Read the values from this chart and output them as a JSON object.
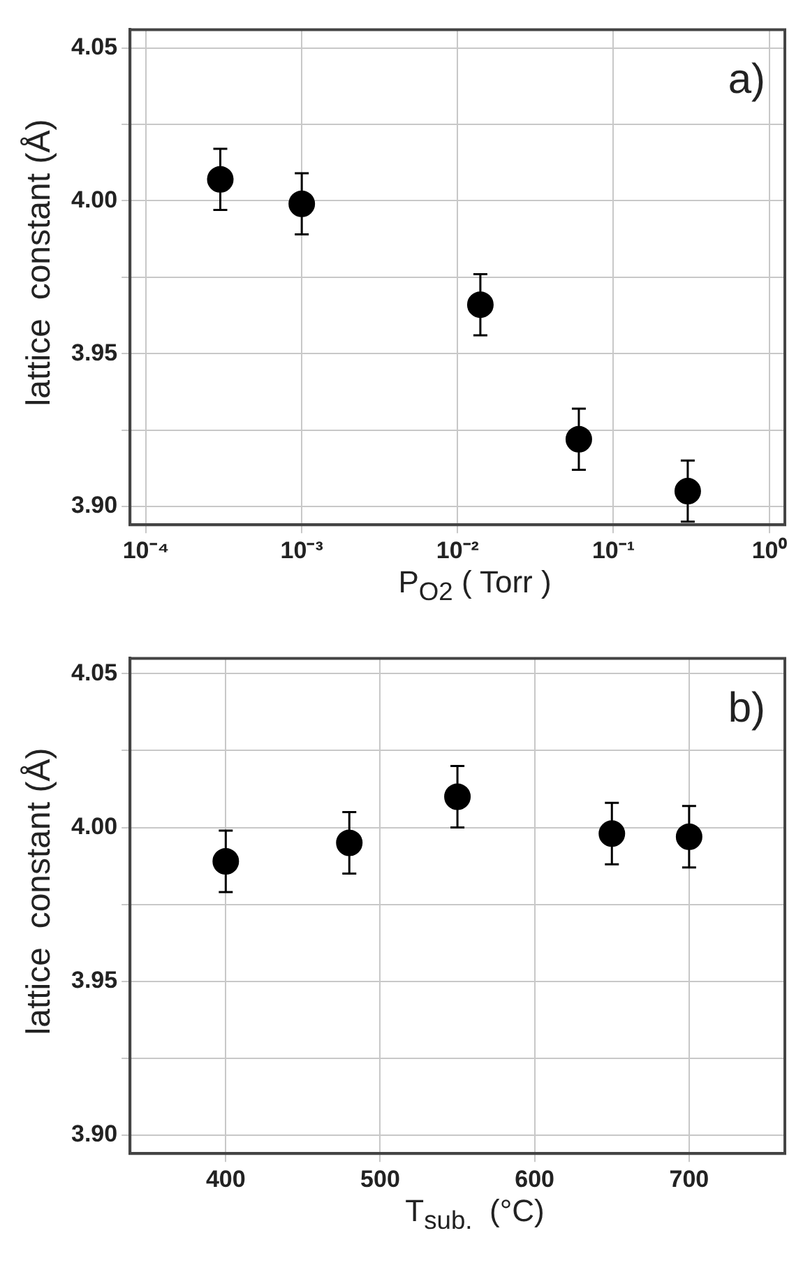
{
  "chart_data": [
    {
      "type": "scatter",
      "xlabel": "P$_{O2}$ ( Torr )",
      "ylabel": "lattice  constant (Å)",
      "annotations": [
        "a)"
      ],
      "log": "x",
      "grid": true,
      "marker": "circle",
      "color": "#000000",
      "x": [
        0.0003,
        0.001,
        0.014,
        0.06,
        0.3
      ],
      "values": [
        4.007,
        3.999,
        3.966,
        3.922,
        3.905
      ],
      "errors": [
        0.01,
        0.01,
        0.01,
        0.01,
        0.01
      ],
      "xlim": [
        7.9e-05,
        1.26
      ],
      "xticks": [
        {
          "value": 0.0001,
          "label": "10⁻⁴"
        },
        {
          "value": 0.001,
          "label": "10⁻³"
        },
        {
          "value": 0.01,
          "label": "10⁻²"
        },
        {
          "value": 0.1,
          "label": "10⁻¹"
        },
        {
          "value": 1,
          "label": "10⁰"
        }
      ],
      "ylim": [
        3.894,
        4.056
      ],
      "yticks": [
        {
          "value": 3.9,
          "label": "3.90"
        },
        {
          "value": 3.925,
          "label": null
        },
        {
          "value": 3.95,
          "label": "3.95"
        },
        {
          "value": 3.975,
          "label": null
        },
        {
          "value": 4.0,
          "label": "4.00"
        },
        {
          "value": 4.025,
          "label": null
        },
        {
          "value": 4.05,
          "label": "4.05"
        }
      ]
    },
    {
      "type": "scatter",
      "xlabel": "T$_{sub.}$  (°C)",
      "ylabel": "lattice  constant (Å)",
      "annotations": [
        "b)"
      ],
      "grid": true,
      "marker": "circle",
      "color": "#000000",
      "x": [
        400,
        480,
        550,
        650,
        700
      ],
      "values": [
        3.989,
        3.995,
        4.01,
        3.998,
        3.997
      ],
      "errors": [
        0.01,
        0.01,
        0.01,
        0.01,
        0.01
      ],
      "xlim": [
        338,
        762
      ],
      "xticks": [
        400,
        500,
        600,
        700
      ],
      "ylim": [
        3.894,
        4.055
      ],
      "yticks": [
        {
          "value": 3.9,
          "label": "3.90"
        },
        {
          "value": 3.925,
          "label": null
        },
        {
          "value": 3.95,
          "label": "3.95"
        },
        {
          "value": 3.975,
          "label": null
        },
        {
          "value": 4.0,
          "label": "4.00"
        },
        {
          "value": 4.025,
          "label": null
        },
        {
          "value": 4.05,
          "label": "4.05"
        }
      ]
    }
  ]
}
